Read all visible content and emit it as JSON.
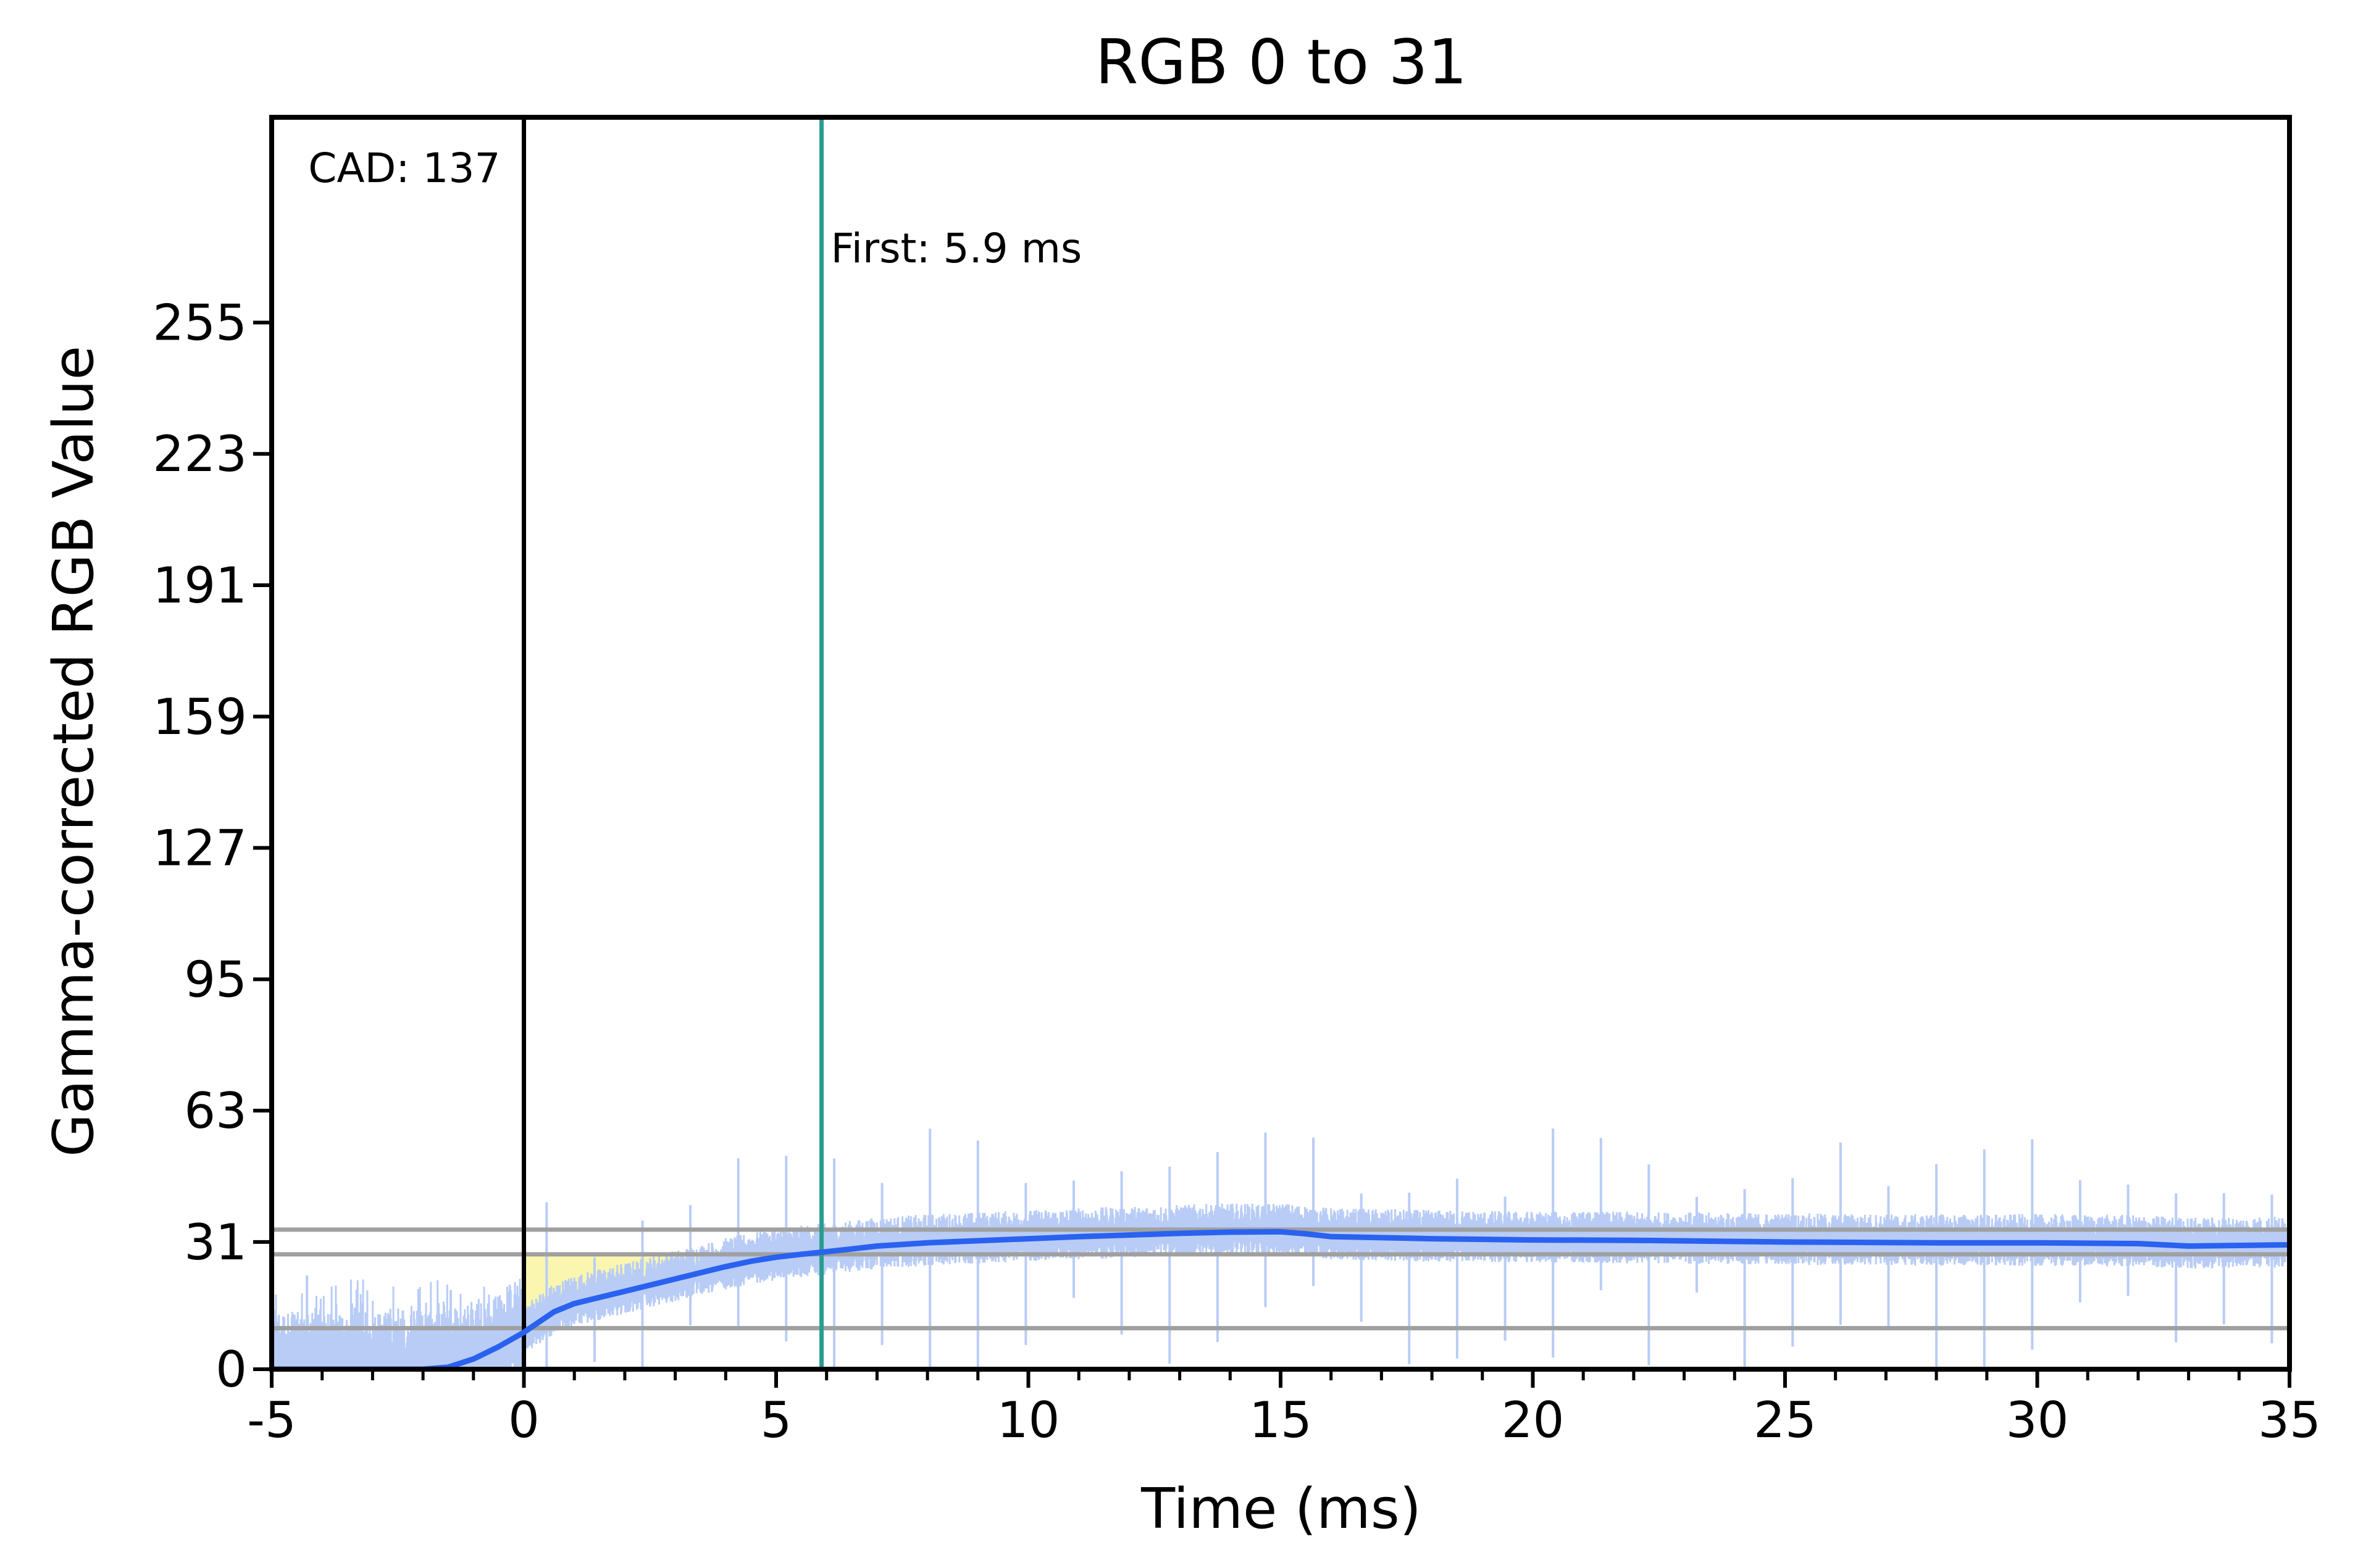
{
  "chart_data": {
    "type": "line",
    "title": "RGB 0 to 31",
    "xlabel": "Time (ms)",
    "ylabel": "Gamma-corrected RGB Value",
    "xlim": [
      -5,
      35
    ],
    "ylim": [
      0,
      305
    ],
    "xticks": [
      -5,
      0,
      5,
      10,
      15,
      20,
      25,
      30,
      35
    ],
    "yticks": [
      0,
      31,
      63,
      95,
      127,
      159,
      191,
      223,
      255
    ],
    "colors": {
      "smoothed": "#2a62ef",
      "raw": "#b8ccf6",
      "reference_lines": "#a0a0a0",
      "first_marker": "#2a9d90",
      "cad_marker": "#000000",
      "cad_fill": "#faf6b0"
    },
    "reference_lines_y": [
      10,
      28,
      34
    ],
    "vertical_markers": [
      {
        "x": 0,
        "label": "CAD: 137",
        "color": "#000000"
      },
      {
        "x": 5.9,
        "label": "First: 5.9 ms",
        "color": "#2a9d90"
      }
    ],
    "series": [
      {
        "kind": "smoothed",
        "x": [
          -5,
          -2,
          -1.5,
          -1,
          -0.5,
          0,
          0.3,
          0.6,
          1,
          1.5,
          2,
          2.5,
          3,
          3.5,
          4,
          4.5,
          5,
          5.5,
          5.9,
          6.5,
          7,
          8,
          9,
          10,
          11,
          12,
          13,
          14,
          15,
          15.5,
          16,
          18,
          20,
          22,
          25,
          28,
          30,
          32,
          33,
          35
        ],
        "y": [
          0,
          0,
          0.5,
          2.5,
          5.5,
          9,
          11.5,
          14,
          16,
          17.5,
          19,
          20.5,
          22,
          23.5,
          25,
          26.3,
          27.3,
          28,
          28.5,
          29.3,
          30,
          30.8,
          31.3,
          31.8,
          32.3,
          32.7,
          33.1,
          33.4,
          33.5,
          33,
          32.3,
          31.8,
          31.5,
          31.4,
          31,
          30.8,
          30.8,
          30.6,
          30,
          30.3
        ]
      }
    ]
  }
}
